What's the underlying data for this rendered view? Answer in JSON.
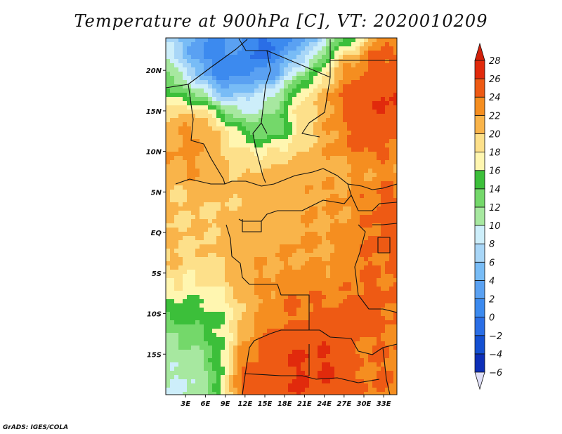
{
  "chart_data": {
    "type": "heatmap",
    "title": "Temperature at 900hPa [C], VT: 2020010209",
    "variable": "Temperature at 900hPa",
    "units": "C",
    "valid_time": "2020010209",
    "x_range_deg": [
      0,
      35
    ],
    "y_range_deg": [
      -20,
      24
    ],
    "x_ticks": [
      {
        "value": 3,
        "label": "3E"
      },
      {
        "value": 6,
        "label": "6E"
      },
      {
        "value": 9,
        "label": "9E"
      },
      {
        "value": 12,
        "label": "12E"
      },
      {
        "value": 15,
        "label": "15E"
      },
      {
        "value": 18,
        "label": "18E"
      },
      {
        "value": 21,
        "label": "21E"
      },
      {
        "value": 24,
        "label": "24E"
      },
      {
        "value": 27,
        "label": "27E"
      },
      {
        "value": 30,
        "label": "30E"
      },
      {
        "value": 33,
        "label": "33E"
      }
    ],
    "y_ticks": [
      {
        "value": 20,
        "label": "20N"
      },
      {
        "value": 15,
        "label": "15N"
      },
      {
        "value": 10,
        "label": "10N"
      },
      {
        "value": 5,
        "label": "5N"
      },
      {
        "value": 0,
        "label": "EQ"
      },
      {
        "value": -5,
        "label": "5S"
      },
      {
        "value": -10,
        "label": "10S"
      },
      {
        "value": -15,
        "label": "15S"
      }
    ],
    "colorbar": {
      "levels": [
        -6,
        -4,
        -2,
        0,
        2,
        4,
        6,
        8,
        10,
        12,
        14,
        16,
        18,
        20,
        22,
        24,
        26,
        28
      ],
      "labels": [
        "−6",
        "−4",
        "−2",
        "0",
        "2",
        "4",
        "6",
        "8",
        "10",
        "12",
        "14",
        "16",
        "18",
        "20",
        "22",
        "24",
        "26",
        "28"
      ],
      "colors": [
        "#0b0a6e",
        "#0d2fb8",
        "#1450d2",
        "#2a6ee6",
        "#3c8aef",
        "#5aa1f2",
        "#78bcf6",
        "#a8d6f7",
        "#cdeefa",
        "#a7e8a0",
        "#74d86a",
        "#3cbf3a",
        "#fff6b0",
        "#fde08a",
        "#f9b44a",
        "#f58e20",
        "#ee5a14",
        "#e12a0c"
      ],
      "under_color": "#e0e0f8",
      "over_color": "#d2200a"
    },
    "field": [
      [
        10,
        7,
        6,
        4,
        4,
        6,
        3,
        1,
        3,
        3,
        6,
        6,
        12,
        14,
        18,
        22,
        26,
        24
      ],
      [
        13,
        9,
        6,
        3,
        3,
        3,
        3,
        1,
        3,
        6,
        9,
        12,
        17,
        22,
        23,
        26,
        27,
        26
      ],
      [
        15,
        12,
        10,
        6,
        3,
        3,
        4,
        5,
        6,
        10,
        14,
        17,
        21,
        24,
        26,
        27,
        27,
        27
      ],
      [
        18,
        16,
        14,
        12,
        8,
        8,
        9,
        10,
        12,
        16,
        20,
        21,
        24,
        26,
        27,
        27,
        28,
        28
      ],
      [
        22,
        22,
        22,
        21,
        16,
        13,
        12,
        13,
        14,
        18,
        21,
        22,
        24,
        26,
        27,
        27,
        28,
        28
      ],
      [
        23,
        24,
        24,
        23,
        22,
        19,
        16,
        15,
        15,
        17,
        21,
        22,
        24,
        25,
        27,
        27,
        27,
        27
      ],
      [
        24,
        24,
        25,
        24,
        22,
        21,
        20,
        19,
        20,
        21,
        22,
        23,
        24,
        25,
        26,
        27,
        26,
        26
      ],
      [
        24,
        24,
        24,
        23,
        23,
        22,
        22,
        22,
        22,
        23,
        23,
        23,
        23,
        23,
        24,
        24,
        25,
        24
      ],
      [
        22,
        22,
        23,
        23,
        22,
        23,
        23,
        23,
        23,
        23,
        23,
        24,
        24,
        24,
        25,
        25,
        26,
        26
      ],
      [
        22,
        22,
        22,
        22,
        22,
        22,
        23,
        23,
        23,
        23,
        23,
        24,
        24,
        24,
        25,
        26,
        27,
        27
      ],
      [
        22,
        22,
        22,
        22,
        22,
        23,
        23,
        23,
        23,
        23,
        24,
        24,
        24,
        24,
        25,
        26,
        27,
        27
      ],
      [
        22,
        22,
        22,
        22,
        23,
        23,
        23,
        23,
        23,
        24,
        24,
        24,
        24,
        25,
        25,
        26,
        27,
        27
      ],
      [
        22,
        22,
        21,
        21,
        22,
        23,
        23,
        24,
        24,
        24,
        24,
        24,
        24,
        25,
        26,
        26,
        26,
        26
      ],
      [
        20,
        20,
        20,
        20,
        21,
        23,
        24,
        24,
        24,
        25,
        25,
        25,
        25,
        25,
        26,
        26,
        26,
        26
      ],
      [
        18,
        18,
        18,
        18,
        19,
        21,
        23,
        24,
        25,
        26,
        26,
        26,
        26,
        26,
        27,
        27,
        27,
        26
      ],
      [
        16,
        16,
        17,
        17,
        18,
        20,
        23,
        25,
        26,
        26,
        26,
        27,
        27,
        27,
        27,
        27,
        26,
        26
      ],
      [
        14,
        14,
        15,
        16,
        18,
        21,
        24,
        26,
        27,
        27,
        27,
        27,
        27,
        27,
        26,
        26,
        26,
        26
      ],
      [
        13,
        13,
        13,
        15,
        17,
        23,
        26,
        27,
        27,
        28,
        28,
        28,
        28,
        27,
        26,
        26,
        26,
        26
      ],
      [
        12,
        12,
        12,
        14,
        17,
        24,
        27,
        27,
        27,
        28,
        28,
        28,
        28,
        27,
        26,
        26,
        26,
        26
      ],
      [
        12,
        12,
        12,
        13,
        17,
        24,
        27,
        27,
        27,
        28,
        28,
        27,
        27,
        27,
        26,
        26,
        26,
        26
      ]
    ]
  },
  "credit": "GrADS: IGES/COLA"
}
